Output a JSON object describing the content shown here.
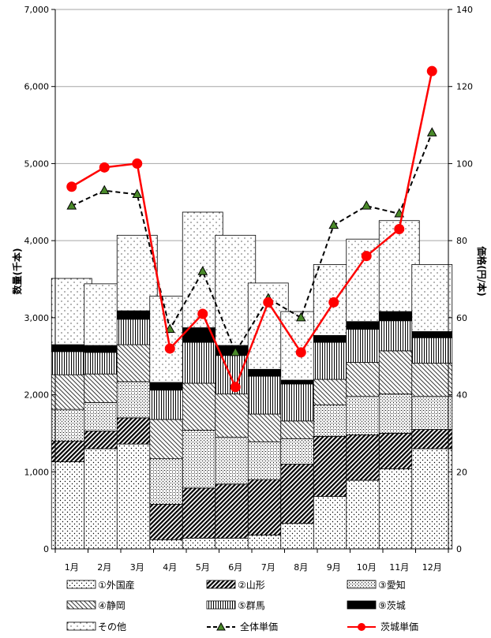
{
  "chart_data": {
    "type": "bar",
    "stacked": true,
    "categories": [
      "1月",
      "2月",
      "3月",
      "4月",
      "5月",
      "6月",
      "7月",
      "8月",
      "9月",
      "10月",
      "11月",
      "12月"
    ],
    "series": [
      {
        "name": "①外国産",
        "pattern": "sparse-dots",
        "values": [
          1130,
          1300,
          1360,
          120,
          140,
          140,
          180,
          330,
          680,
          890,
          1040,
          1300
        ]
      },
      {
        "name": "②山形",
        "pattern": "dense-diagonal",
        "values": [
          270,
          230,
          340,
          460,
          650,
          700,
          720,
          770,
          780,
          590,
          460,
          250
        ]
      },
      {
        "name": "③愛知",
        "pattern": "fine-dots",
        "values": [
          410,
          370,
          470,
          590,
          750,
          610,
          490,
          330,
          410,
          500,
          510,
          430
        ]
      },
      {
        "name": "④静岡",
        "pattern": "diagonal-hatch",
        "values": [
          450,
          370,
          480,
          510,
          610,
          560,
          360,
          230,
          330,
          440,
          560,
          430
        ]
      },
      {
        "name": "⑤群馬",
        "pattern": "vertical-lines",
        "values": [
          300,
          280,
          330,
          380,
          530,
          500,
          490,
          480,
          480,
          430,
          390,
          330
        ]
      },
      {
        "name": "⑨茨城",
        "pattern": "solid-black",
        "values": [
          90,
          90,
          110,
          100,
          190,
          130,
          90,
          50,
          90,
          100,
          120,
          80
        ]
      },
      {
        "name": "その他",
        "pattern": "light-dots",
        "values": [
          860,
          800,
          980,
          1120,
          1500,
          1430,
          1120,
          890,
          920,
          1070,
          1180,
          870
        ]
      }
    ],
    "lines": [
      {
        "name": "全体単価",
        "axis": "right",
        "color": "#000000",
        "style": "dashed",
        "marker": "triangle",
        "marker_color": "#4a8a2a",
        "values": [
          89,
          93,
          92,
          57,
          72,
          51,
          65,
          60,
          84,
          89,
          87,
          108
        ]
      },
      {
        "name": "茨城単価",
        "axis": "right",
        "color": "#ff0000",
        "style": "solid",
        "marker": "circle",
        "marker_color": "#ff0000",
        "values": [
          94,
          99,
          100,
          52,
          61,
          42,
          64,
          51,
          64,
          76,
          83,
          124
        ]
      }
    ],
    "ylabel": "数量(千本)",
    "y2label": "価格(円/本)",
    "ylim": [
      0,
      7000
    ],
    "y2lim": [
      0,
      140
    ],
    "yticks": [
      "0",
      "1,000",
      "2,000",
      "3,000",
      "4,000",
      "5,000",
      "6,000",
      "7,000"
    ],
    "y2ticks": [
      "0",
      "20",
      "40",
      "60",
      "80",
      "100",
      "120",
      "140"
    ],
    "grid": true,
    "legend_position": "bottom"
  }
}
